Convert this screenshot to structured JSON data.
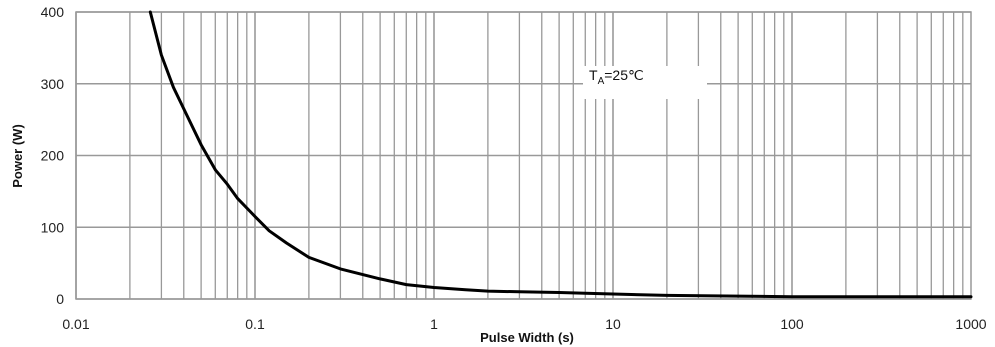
{
  "chart_data": {
    "type": "line",
    "title": "",
    "xlabel": "Pulse Width (s)",
    "ylabel": "Power (W)",
    "x_scale": "log",
    "xlim": [
      0.01,
      1000
    ],
    "ylim": [
      0,
      400
    ],
    "x_ticks": [
      "0.01",
      "0.1",
      "1",
      "10",
      "100",
      "1000"
    ],
    "y_ticks": [
      "0",
      "100",
      "200",
      "300",
      "400"
    ],
    "grid": true,
    "annotation": {
      "main": "T",
      "sub": "A",
      "rest": "=25℃"
    },
    "series": [
      {
        "x": [
          0.026,
          0.03,
          0.035,
          0.04,
          0.05,
          0.06,
          0.07,
          0.08,
          0.1,
          0.12,
          0.15,
          0.2,
          0.3,
          0.5,
          0.7,
          1,
          1.5,
          2,
          3,
          5,
          7,
          10,
          20,
          50,
          100,
          1000
        ],
        "y": [
          400,
          340,
          295,
          265,
          215,
          180,
          160,
          140,
          115,
          95,
          78,
          58,
          42,
          28,
          20,
          16,
          13,
          11,
          10,
          9,
          8,
          7,
          5,
          4,
          3,
          3
        ]
      }
    ]
  },
  "colors": {
    "grid": "#999999",
    "line": "#000000",
    "axis": "#555555"
  }
}
